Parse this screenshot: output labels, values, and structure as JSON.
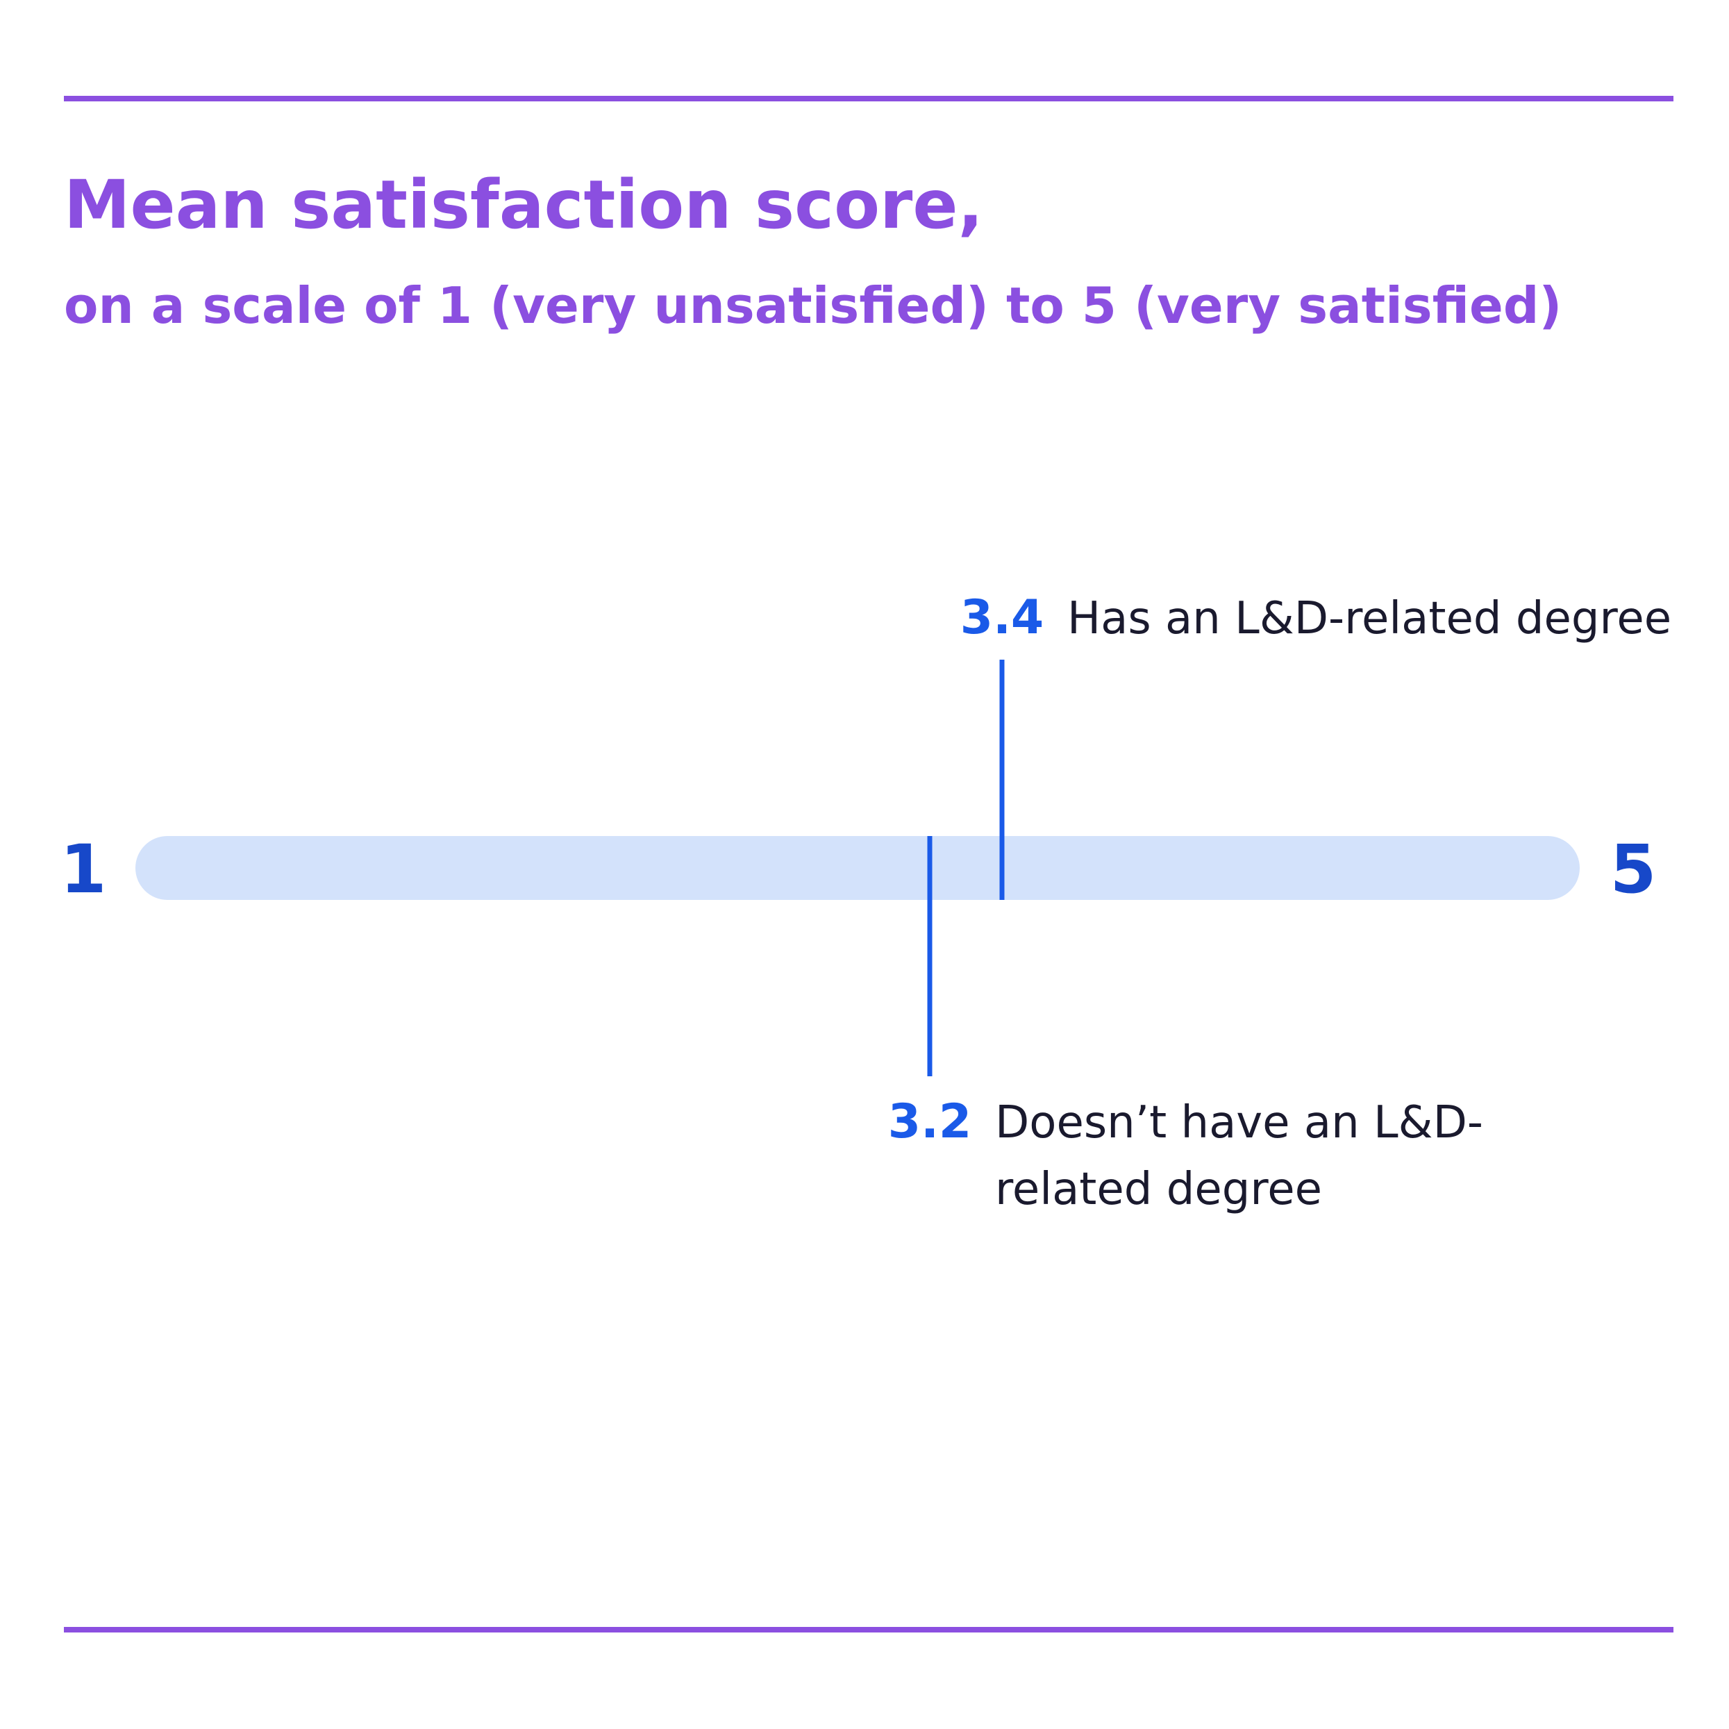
{
  "chart_data": {
    "type": "dot",
    "title": "Mean satisfaction score,",
    "subtitle": "on a scale of 1 (very unsatisfied) to 5 (very satisfied)",
    "xlim": [
      1,
      5
    ],
    "axis_min_label": "1",
    "axis_max_label": "5",
    "markers": [
      {
        "value": 3.4,
        "value_label": "3.4",
        "label_lines": [
          "Has an L&D-related degree"
        ],
        "side": "above"
      },
      {
        "value": 3.2,
        "value_label": "3.2",
        "label_lines": [
          "Doesn’t have an L&D-",
          "related degree"
        ],
        "side": "below"
      }
    ]
  },
  "colors": {
    "accent": "#8b4fe0",
    "marker": "#1a5ae8",
    "track": "#d3e2fb",
    "label_text": "#1a1a2e"
  }
}
